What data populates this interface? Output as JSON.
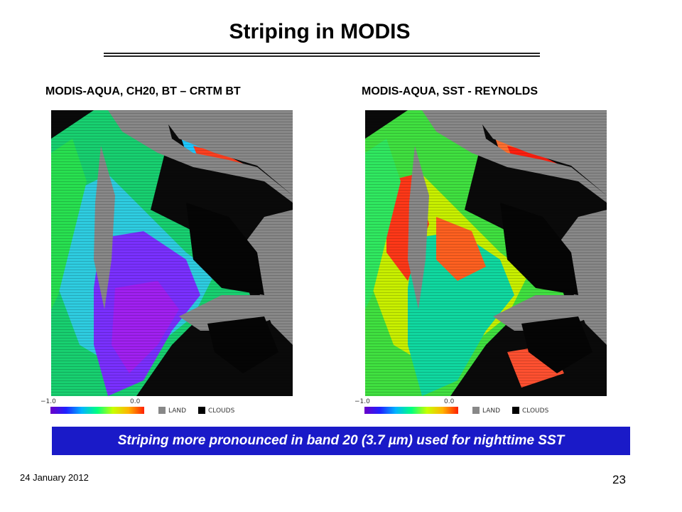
{
  "slide": {
    "title": "Striping in MODIS",
    "date": "24 January 2012",
    "page_number": "23",
    "banner": "Striping more pronounced in band 20 (3.7 µm) used for nighttime SST"
  },
  "panels": [
    {
      "title": "MODIS-AQUA,  CH20, BT – CRTM BT",
      "legend": {
        "min": "−1.0",
        "max": "0.0",
        "land": "LAND",
        "clouds": "CLOUDS"
      }
    },
    {
      "title": "MODIS-AQUA,  SST - REYNOLDS",
      "legend": {
        "min": "−1.0",
        "max": "0.0",
        "land": "LAND",
        "clouds": "CLOUDS"
      }
    }
  ],
  "colors": {
    "banner": "#1a1ac8",
    "land": "#888888",
    "clouds": "#000000",
    "colorbar": [
      "#6a00c8",
      "#2020ff",
      "#00b4ff",
      "#00ff80",
      "#c8ff00",
      "#ffb400",
      "#ff2000"
    ]
  }
}
